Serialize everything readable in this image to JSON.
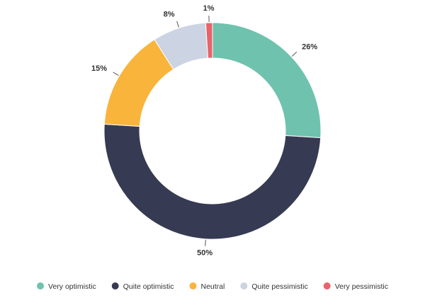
{
  "chart_data": {
    "type": "donut",
    "categories": [
      "Very optimistic",
      "Quite optimistic",
      "Neutral",
      "Quite pessimistic",
      "Very pessimistic"
    ],
    "values": [
      26,
      50,
      15,
      8,
      1
    ],
    "value_labels": [
      "26%",
      "50%",
      "15%",
      "8%",
      "1%"
    ],
    "colors": [
      "#6fc2ad",
      "#363a52",
      "#f9b43c",
      "#ccd3e2",
      "#e8636a"
    ],
    "legend": "bottom"
  }
}
